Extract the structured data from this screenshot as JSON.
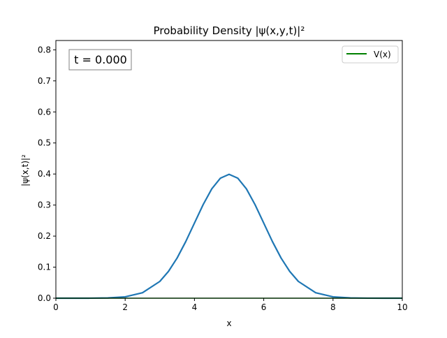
{
  "chart_data": {
    "type": "line",
    "title": "Probability Density |ψ(x,y,t)|²",
    "xlabel": "x",
    "ylabel": "|ψ(x,t)|²",
    "xlim": [
      0,
      10
    ],
    "ylim": [
      0,
      0.83
    ],
    "x_ticks": [
      0,
      2,
      4,
      6,
      8,
      10
    ],
    "x_tick_labels": [
      "0",
      "2",
      "4",
      "6",
      "8",
      "10"
    ],
    "y_ticks": [
      0,
      0.1,
      0.2,
      0.3,
      0.4,
      0.5,
      0.6,
      0.7,
      0.8
    ],
    "y_tick_labels": [
      "0.0",
      "0.1",
      "0.2",
      "0.3",
      "0.4",
      "0.5",
      "0.6",
      "0.7",
      "0.8"
    ],
    "grid": false,
    "legend_position": "top-right",
    "annotation": "t = 0.000",
    "series": [
      {
        "color": "#1f77b4",
        "x": [
          0,
          0.5,
          1,
          1.5,
          2,
          2.5,
          3,
          3.25,
          3.5,
          3.75,
          4,
          4.25,
          4.5,
          4.75,
          5,
          5.25,
          5.5,
          5.75,
          6,
          6.25,
          6.5,
          6.75,
          7,
          7.5,
          8,
          8.5,
          9,
          9.5,
          10
        ],
        "values": [
          0.0,
          0.0,
          0.0001,
          0.0009,
          0.0044,
          0.0175,
          0.054,
          0.0863,
          0.1295,
          0.1826,
          0.242,
          0.3011,
          0.3521,
          0.3867,
          0.3989,
          0.3867,
          0.3521,
          0.3011,
          0.242,
          0.1826,
          0.1295,
          0.0863,
          0.054,
          0.0175,
          0.0044,
          0.0009,
          0.0001,
          0.0,
          0.0
        ]
      },
      {
        "name": "V(x)",
        "color": "#008000",
        "x": [
          0,
          10
        ],
        "values": [
          0,
          0
        ]
      }
    ]
  }
}
